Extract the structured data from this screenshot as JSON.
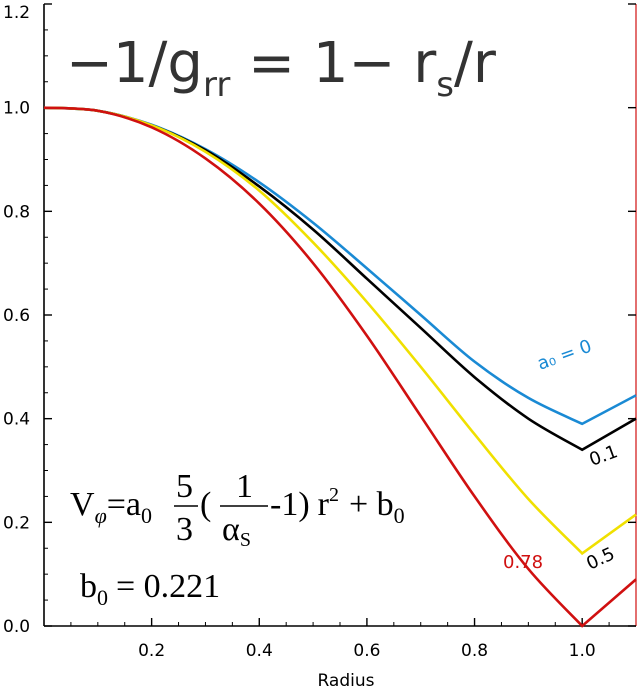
{
  "chart_data": {
    "type": "line",
    "title": "",
    "xlabel": "Radius",
    "ylabel": "",
    "xlim": [
      0.0,
      1.1
    ],
    "ylim": [
      0.0,
      1.2
    ],
    "x_ticks": [
      "0.2",
      "0.4",
      "0.6",
      "0.8",
      "1.0"
    ],
    "y_ticks": [
      "0.0",
      "0.2",
      "0.4",
      "0.6",
      "0.8",
      "1.0",
      "1.2"
    ],
    "grid": false,
    "series": [
      {
        "name": "a₀ = 0",
        "color": "#1a8ad4",
        "x": [
          0.0,
          0.1,
          0.2,
          0.3,
          0.4,
          0.5,
          0.6,
          0.7,
          0.8,
          0.9,
          1.0,
          1.1
        ],
        "values": [
          1.0,
          0.994,
          0.967,
          0.92,
          0.856,
          0.778,
          0.69,
          0.6,
          0.51,
          0.44,
          0.39,
          0.445
        ]
      },
      {
        "name": "0.1",
        "color": "#000000",
        "x": [
          0.0,
          0.1,
          0.2,
          0.3,
          0.4,
          0.5,
          0.6,
          0.7,
          0.8,
          0.9,
          1.0,
          1.1
        ],
        "values": [
          1.0,
          0.994,
          0.966,
          0.918,
          0.848,
          0.765,
          0.67,
          0.575,
          0.48,
          0.4,
          0.34,
          0.4
        ]
      },
      {
        "name": "0.5",
        "color": "#f0e000",
        "x": [
          0.0,
          0.1,
          0.2,
          0.3,
          0.4,
          0.5,
          0.6,
          0.7,
          0.8,
          0.9,
          1.0,
          1.1
        ],
        "values": [
          1.0,
          0.994,
          0.966,
          0.915,
          0.84,
          0.74,
          0.625,
          0.5,
          0.37,
          0.245,
          0.14,
          0.215
        ]
      },
      {
        "name": "0.78",
        "color": "#d01010",
        "x": [
          0.0,
          0.1,
          0.2,
          0.3,
          0.4,
          0.5,
          0.6,
          0.7,
          0.8,
          0.9,
          1.0,
          1.1
        ],
        "values": [
          1.0,
          0.994,
          0.962,
          0.902,
          0.815,
          0.7,
          0.56,
          0.405,
          0.25,
          0.11,
          0.0,
          0.09
        ]
      }
    ],
    "annotations": {
      "top_formula_main": "−1/g",
      "top_formula_sub": "rr",
      "top_formula_mid": " = 1− r",
      "top_formula_sub2": "s",
      "top_formula_end": "/r",
      "a0_label": "a₀ = 0",
      "label_01": "0.1",
      "label_05": "0.5",
      "label_078": "0.78",
      "vphi_V": "V",
      "vphi_phi": "φ",
      "vphi_eq_a": "=a",
      "vphi_sub0": "0",
      "frac1_num": "5",
      "frac1_den": "3",
      "lparen": "(",
      "frac2_num": "1",
      "frac2_den": "α",
      "frac2_den_sub": "S",
      "minus_one": "-1)",
      "r_sq": "r",
      "sq": "2",
      "plus_b": "+ b",
      "b_sub": "0",
      "b0_line_b": "b",
      "b0_line_sub": "0",
      "b0_line_val": "= 0.221"
    },
    "colors": {
      "a0_label": "#1a8ad4",
      "label_01": "#000000",
      "label_05": "#000000",
      "label_078": "#d01010",
      "right_edge": "#d01010"
    }
  }
}
